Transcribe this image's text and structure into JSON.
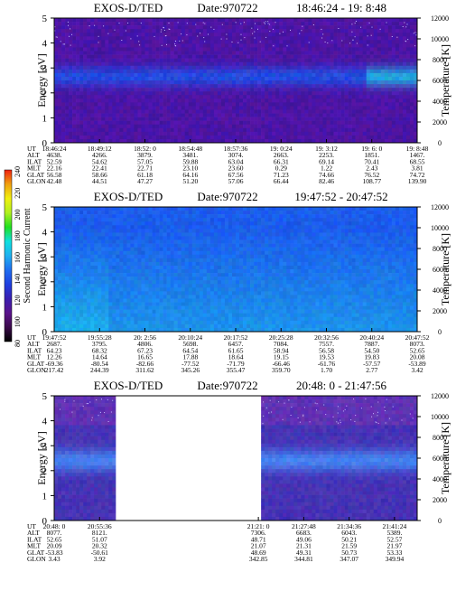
{
  "colorbar": {
    "label": "Second Harmonic Current",
    "ticks": [
      80,
      100,
      120,
      140,
      160,
      180,
      200,
      220,
      240
    ],
    "colors": [
      "#000000",
      "#3a0a4a",
      "#5a138c",
      "#3a1fb0",
      "#1f3fe0",
      "#1f6ef0",
      "#1fb0f0",
      "#10e0e0",
      "#20e020",
      "#b0f020",
      "#f0f010",
      "#f0a010",
      "#f02010"
    ]
  },
  "panels": [
    {
      "title": "EXOS-D/TED",
      "date": "Date:970722",
      "time_range": "18:46:24 - 19: 8:48",
      "ylabel": "Energy [eV]",
      "y2label": "Temperature [K]",
      "yticks": [
        0,
        1,
        2,
        3,
        4,
        5
      ],
      "y2ticks": [
        0,
        2000,
        4000,
        6000,
        8000,
        10000,
        12000
      ],
      "row_labels": [
        "UT",
        "ALT",
        "ILAT",
        "MLT",
        "GLAT",
        "GLON"
      ],
      "columns": [
        [
          "18:46:24",
          "4638.",
          "52.59",
          "22.16",
          "56.58",
          "42.48"
        ],
        [
          "18:49:12",
          "4266.",
          "54.62",
          "22.41",
          "58.66",
          "44.51"
        ],
        [
          "18:52: 0",
          "3879.",
          "57.05",
          "22.71",
          "61.18",
          "47.27"
        ],
        [
          "18:54:48",
          "3481.",
          "59.88",
          "23.10",
          "64.16",
          "51.20"
        ],
        [
          "18:57:36",
          "3074.",
          "63.04",
          "23.60",
          "67.56",
          "57.06"
        ],
        [
          "19: 0:24",
          "2663.",
          "66.31",
          "0.29",
          "71.23",
          "66.44"
        ],
        [
          "19: 3:12",
          "2253.",
          "69.14",
          "1.22",
          "74.66",
          "82.46"
        ],
        [
          "19: 6: 0",
          "1851.",
          "70.41",
          "2.43",
          "76.52",
          "108.77"
        ],
        [
          "19: 8:48",
          "1467.",
          "68.55",
          "3.81",
          "74.72",
          "139.90"
        ]
      ],
      "tick_positions": [
        0,
        0.125,
        0.25,
        0.375,
        0.5,
        0.625,
        0.75,
        0.875,
        1.0
      ],
      "gap": null
    },
    {
      "title": "EXOS-D/TED",
      "date": "Date:970722",
      "time_range": "19:47:52 - 20:47:52",
      "ylabel": "Energy [eV]",
      "y2label": "Temperature [K]",
      "yticks": [
        0,
        1,
        2,
        3,
        4,
        5
      ],
      "y2ticks": [
        0,
        2000,
        4000,
        6000,
        8000,
        10000,
        12000
      ],
      "row_labels": [
        "UT",
        "ALT",
        "ILAT",
        "MLT",
        "GLAT",
        "GLON"
      ],
      "columns": [
        [
          "19:47:52",
          "2687.",
          "64.23",
          "12.26",
          "-69.36",
          "217.42"
        ],
        [
          "19:55:28",
          "3795.",
          "68.32",
          "14.64",
          "-80.54",
          "244.39"
        ],
        [
          "20: 2:56",
          "4806.",
          "67.23",
          "16.65",
          "-82.66",
          "311.62"
        ],
        [
          "20:10:24",
          "5698.",
          "64.54",
          "17.88",
          "-77.52",
          "345.26"
        ],
        [
          "20:17:52",
          "6457.",
          "61.65",
          "18.64",
          "-71.79",
          "355.47"
        ],
        [
          "20:25:28",
          "7084.",
          "58.94",
          "19.15",
          "-66.46",
          "359.70"
        ],
        [
          "20:32:56",
          "7557.",
          "56.58",
          "19.53",
          "-61.76",
          "1.70"
        ],
        [
          "20:40:24",
          "7887.",
          "54.50",
          "19.83",
          "-57.57",
          "2.77"
        ],
        [
          "20:47:52",
          "8073.",
          "52.65",
          "20.08",
          "-53.89",
          "3.42"
        ]
      ],
      "tick_positions": [
        0,
        0.125,
        0.25,
        0.375,
        0.5,
        0.625,
        0.75,
        0.875,
        1.0
      ],
      "gap": null
    },
    {
      "title": "EXOS-D/TED",
      "date": "Date:970722",
      "time_range": "20:48: 0 - 21:47:56",
      "ylabel": "Energy [eV]",
      "y2label": "Temperature [K]",
      "yticks": [
        0,
        1,
        2,
        3,
        4,
        5
      ],
      "y2ticks": [
        0,
        2000,
        4000,
        6000,
        8000,
        10000,
        12000
      ],
      "row_labels": [
        "UT",
        "ALT",
        "ILAT",
        "MLT",
        "GLAT",
        "GLON"
      ],
      "columns": [
        [
          "20:48: 0",
          "8077.",
          "52.65",
          "20.09",
          "-53.83",
          "3.43"
        ],
        [
          "20:55:36",
          "8121.",
          "51.07",
          "20.32",
          "-50.61",
          "3.92"
        ],
        [
          "21:21: 0",
          "7306.",
          "48.71",
          "21.07",
          "48.69",
          "342.85"
        ],
        [
          "21:27:48",
          "6683.",
          "49.06",
          "21.31",
          "49.31",
          "344.81"
        ],
        [
          "21:34:36",
          "6043.",
          "50.21",
          "21.59",
          "50.73",
          "347.07"
        ],
        [
          "21:41:24",
          "5389.",
          "52.57",
          "21.97",
          "53.33",
          "349.94"
        ]
      ],
      "tick_positions": [
        0,
        0.125,
        0.5625,
        0.6875,
        0.8125,
        0.9375
      ],
      "gap": [
        0.17,
        0.5625
      ]
    }
  ],
  "chart_data": [
    {
      "type": "heatmap",
      "title": "EXOS-D/TED Date:970722 18:46:24 - 19: 8:48",
      "xlabel": "",
      "ylabel": "Energy [eV]",
      "y2label": "Temperature [K]",
      "ylim": [
        0,
        5
      ],
      "y2lim": [
        0,
        12000
      ],
      "x": [
        "18:46:24",
        "18:49:12",
        "18:52: 0",
        "18:54:48",
        "18:57:36",
        "19: 0:24",
        "19: 3:12",
        "19: 6: 0",
        "19: 8:48"
      ],
      "colorbar": {
        "label": "Second Harmonic Current",
        "range": [
          80,
          240
        ]
      }
    },
    {
      "type": "heatmap",
      "title": "EXOS-D/TED Date:970722 19:47:52 - 20:47:52",
      "xlabel": "",
      "ylabel": "Energy [eV]",
      "y2label": "Temperature [K]",
      "ylim": [
        0,
        5
      ],
      "y2lim": [
        0,
        12000
      ],
      "x": [
        "19:47:52",
        "19:55:28",
        "20: 2:56",
        "20:10:24",
        "20:17:52",
        "20:25:28",
        "20:32:56",
        "20:40:24",
        "20:47:52"
      ],
      "colorbar": {
        "label": "Second Harmonic Current",
        "range": [
          80,
          240
        ]
      }
    },
    {
      "type": "heatmap",
      "title": "EXOS-D/TED Date:970722 20:48: 0 - 21:47:56",
      "xlabel": "",
      "ylabel": "Energy [eV]",
      "y2label": "Temperature [K]",
      "ylim": [
        0,
        5
      ],
      "y2lim": [
        0,
        12000
      ],
      "x": [
        "20:48: 0",
        "20:55:36",
        "21:21: 0",
        "21:27:48",
        "21:34:36",
        "21:41:24"
      ],
      "colorbar": {
        "label": "Second Harmonic Current",
        "range": [
          80,
          240
        ]
      }
    }
  ]
}
